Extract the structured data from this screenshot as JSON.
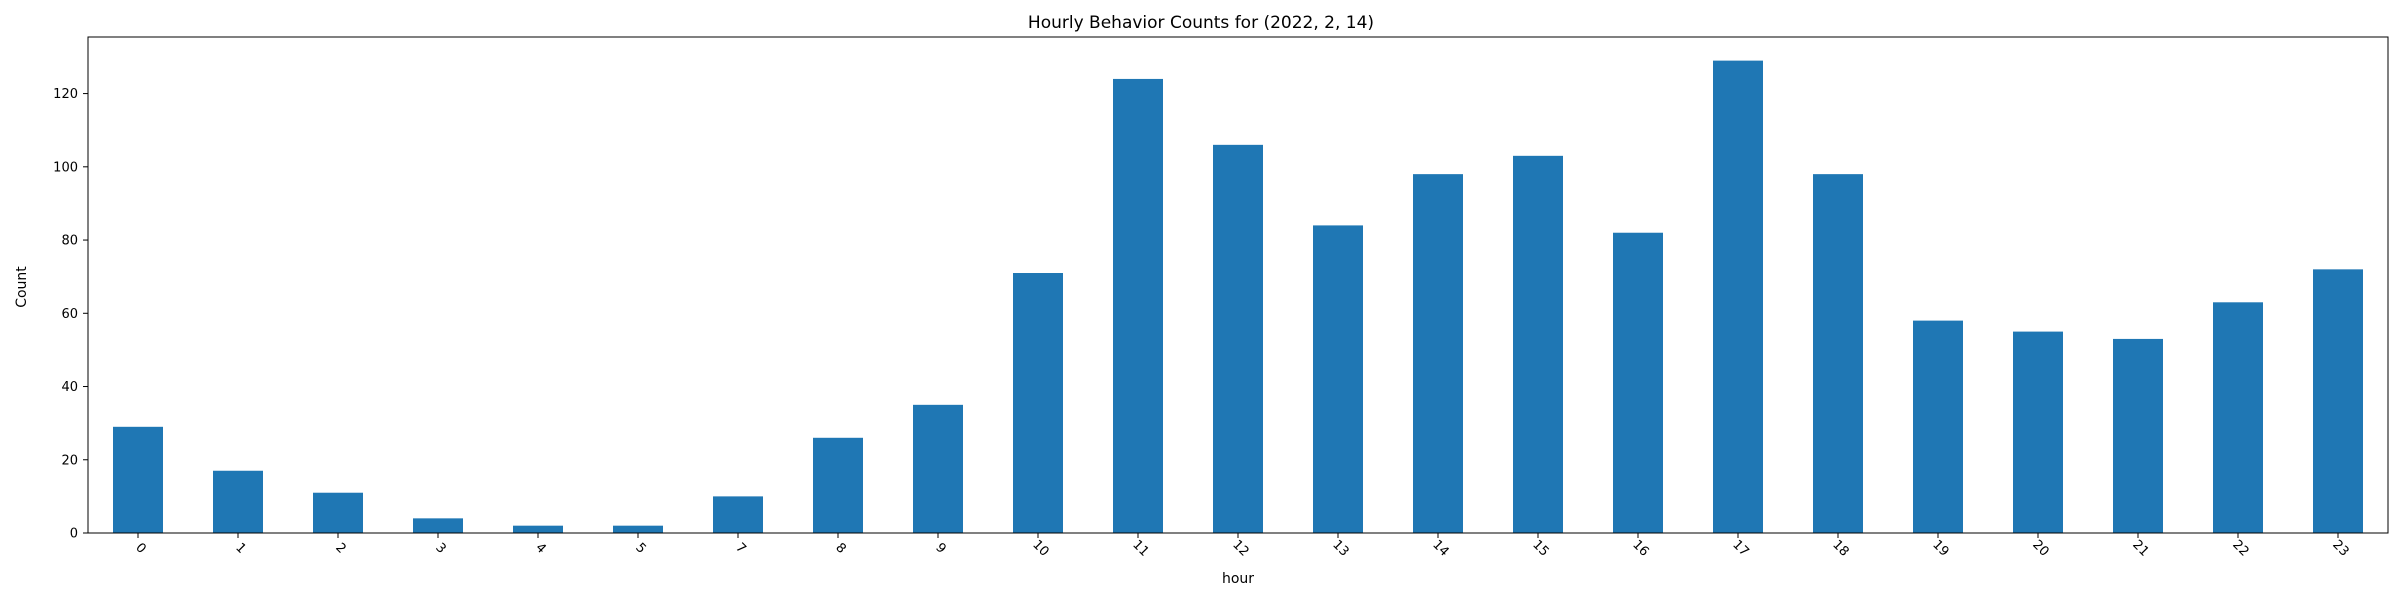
{
  "chart_data": {
    "type": "bar",
    "title": "Hourly Behavior Counts for (2022, 2, 14)",
    "xlabel": "hour",
    "ylabel": "Count",
    "categories": [
      "0",
      "1",
      "2",
      "3",
      "4",
      "5",
      "7",
      "8",
      "9",
      "10",
      "11",
      "12",
      "13",
      "14",
      "15",
      "16",
      "17",
      "18",
      "19",
      "20",
      "21",
      "22",
      "23"
    ],
    "values": [
      29,
      17,
      11,
      4,
      2,
      2,
      10,
      26,
      35,
      71,
      124,
      106,
      84,
      98,
      103,
      82,
      129,
      98,
      58,
      55,
      53,
      63,
      72
    ],
    "ylim": [
      0,
      135.45
    ],
    "yticks": [
      0,
      20,
      40,
      60,
      80,
      100,
      120
    ],
    "bar_color": "#1f77b4",
    "grid": false,
    "legend": "none",
    "xtick_rotation": 45
  }
}
